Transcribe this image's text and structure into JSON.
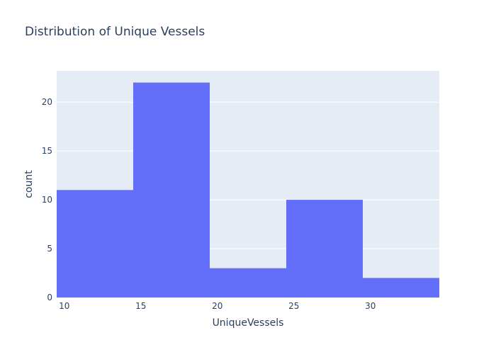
{
  "chart_data": {
    "type": "bar",
    "title": "Distribution of Unique Vessels",
    "xlabel": "UniqueVessels",
    "ylabel": "count",
    "xlim": [
      9.5,
      34.5
    ],
    "ylim": [
      0,
      23.2
    ],
    "x_ticks": [
      10,
      15,
      20,
      25,
      30
    ],
    "y_ticks": [
      0,
      5,
      10,
      15,
      20
    ],
    "bins": [
      {
        "start": 9.5,
        "end": 14.5,
        "count": 11
      },
      {
        "start": 14.5,
        "end": 19.5,
        "count": 22
      },
      {
        "start": 19.5,
        "end": 24.5,
        "count": 3
      },
      {
        "start": 24.5,
        "end": 29.5,
        "count": 10
      },
      {
        "start": 29.5,
        "end": 34.5,
        "count": 2
      }
    ],
    "bar_color": "#636efa",
    "plot_bg": "#e5ecf6",
    "grid": true,
    "legend": false
  }
}
